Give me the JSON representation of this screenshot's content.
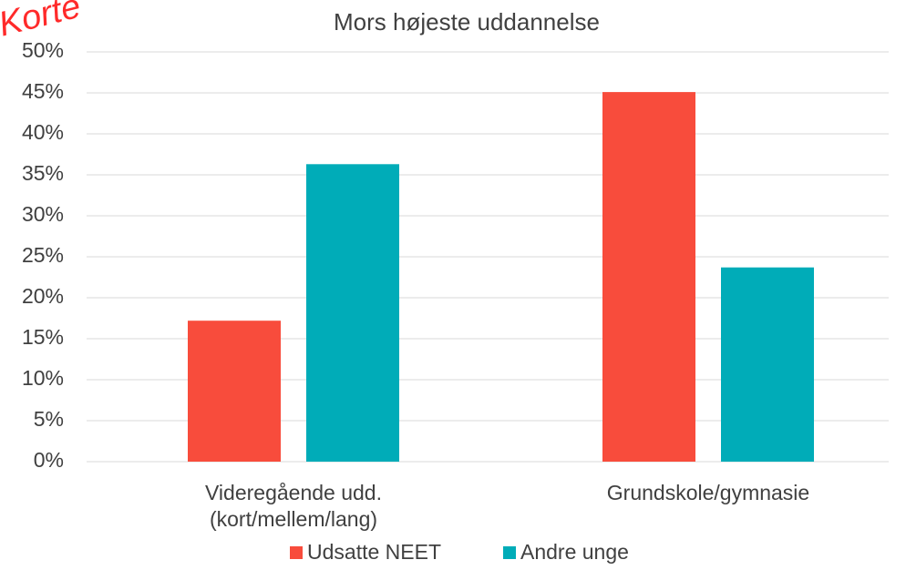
{
  "chart_data": {
    "type": "bar",
    "title": "Mors højeste uddannelse",
    "annotation": "Korte",
    "categories": [
      "Videregående udd.\n(kort/mellem/lang)",
      "Grundskole/gymnasie"
    ],
    "series": [
      {
        "name": "Udsatte NEET",
        "color": "#f84c3c",
        "values": [
          17.2,
          45.1
        ]
      },
      {
        "name": "Andre unge",
        "color": "#00acb8",
        "values": [
          36.3,
          23.7
        ]
      }
    ],
    "ylim": [
      0,
      50
    ],
    "yticks": [
      {
        "value": 0,
        "label": "0%"
      },
      {
        "value": 5,
        "label": "5%"
      },
      {
        "value": 10,
        "label": "10%"
      },
      {
        "value": 15,
        "label": "15%"
      },
      {
        "value": 20,
        "label": "20%"
      },
      {
        "value": 25,
        "label": "25%"
      },
      {
        "value": 30,
        "label": "30%"
      },
      {
        "value": 35,
        "label": "35%"
      },
      {
        "value": 40,
        "label": "40%"
      },
      {
        "value": 45,
        "label": "45%"
      },
      {
        "value": 50,
        "label": "50%"
      }
    ],
    "grid": true,
    "legend": "bottom"
  }
}
